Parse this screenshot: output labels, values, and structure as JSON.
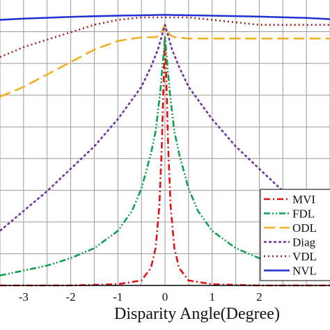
{
  "chart_data": {
    "type": "line",
    "xlabel": "Disparity Angle(Degree)",
    "ylabel": "",
    "title": "",
    "xlim": [
      -3.5,
      3.5
    ],
    "ylim": [
      0,
      1.15
    ],
    "x_ticks": [
      "-3",
      "-2",
      "-1",
      "0",
      "1",
      "2"
    ],
    "grid": true,
    "legend_position": "bottom-right",
    "series": [
      {
        "name": "MVI",
        "legend_label": "MVI",
        "color": "#e01010",
        "dash": "9 4 2 4",
        "points": [
          [
            -3.5,
            0.0
          ],
          [
            -2.0,
            0.0
          ],
          [
            -1.0,
            0.005
          ],
          [
            -0.5,
            0.02
          ],
          [
            -0.3,
            0.07
          ],
          [
            -0.2,
            0.15
          ],
          [
            -0.12,
            0.32
          ],
          [
            -0.07,
            0.55
          ],
          [
            -0.03,
            0.82
          ],
          [
            0.0,
            1.0
          ],
          [
            0.03,
            0.82
          ],
          [
            0.07,
            0.55
          ],
          [
            0.12,
            0.32
          ],
          [
            0.2,
            0.15
          ],
          [
            0.3,
            0.07
          ],
          [
            0.5,
            0.02
          ],
          [
            1.0,
            0.005
          ],
          [
            2.0,
            0.0
          ],
          [
            3.5,
            0.0
          ]
        ]
      },
      {
        "name": "FDL",
        "legend_label": "FDL",
        "color": "#10a050",
        "dash": "9 3 2 3 2 3",
        "points": [
          [
            -3.5,
            0.04
          ],
          [
            -3.0,
            0.06
          ],
          [
            -2.5,
            0.08
          ],
          [
            -2.0,
            0.11
          ],
          [
            -1.5,
            0.15
          ],
          [
            -1.0,
            0.22
          ],
          [
            -0.7,
            0.3
          ],
          [
            -0.5,
            0.39
          ],
          [
            -0.3,
            0.53
          ],
          [
            -0.2,
            0.62
          ],
          [
            -0.1,
            0.78
          ],
          [
            0.0,
            1.0
          ],
          [
            0.1,
            0.78
          ],
          [
            0.2,
            0.62
          ],
          [
            0.3,
            0.53
          ],
          [
            0.5,
            0.39
          ],
          [
            0.7,
            0.3
          ],
          [
            1.0,
            0.22
          ],
          [
            1.5,
            0.15
          ],
          [
            2.0,
            0.11
          ],
          [
            2.5,
            0.08
          ],
          [
            3.0,
            0.06
          ],
          [
            3.5,
            0.04
          ]
        ]
      },
      {
        "name": "ODL",
        "legend_label": "ODL",
        "color": "#f0b020",
        "dash": "16 7",
        "points": [
          [
            -3.5,
            0.76
          ],
          [
            -3.0,
            0.8
          ],
          [
            -2.5,
            0.85
          ],
          [
            -2.0,
            0.9
          ],
          [
            -1.5,
            0.95
          ],
          [
            -1.0,
            0.985
          ],
          [
            -0.5,
            1.0
          ],
          [
            -0.2,
            1.0
          ],
          [
            -0.1,
            1.01
          ],
          [
            0.0,
            1.05
          ],
          [
            0.1,
            1.01
          ],
          [
            0.2,
            1.0
          ],
          [
            0.5,
            0.995
          ],
          [
            1.0,
            0.995
          ],
          [
            2.0,
            0.995
          ],
          [
            3.0,
            0.995
          ],
          [
            3.5,
            0.995
          ]
        ]
      },
      {
        "name": "Diag",
        "legend_label": "Diag",
        "color": "#7030a0",
        "dash": "4 3",
        "points": [
          [
            -3.5,
            0.22
          ],
          [
            -3.0,
            0.3
          ],
          [
            -2.5,
            0.38
          ],
          [
            -2.0,
            0.47
          ],
          [
            -1.5,
            0.56
          ],
          [
            -1.0,
            0.67
          ],
          [
            -0.5,
            0.8
          ],
          [
            -0.3,
            0.88
          ],
          [
            -0.15,
            0.95
          ],
          [
            0.0,
            1.05
          ],
          [
            0.15,
            0.95
          ],
          [
            0.3,
            0.88
          ],
          [
            0.5,
            0.8
          ],
          [
            1.0,
            0.67
          ],
          [
            1.5,
            0.56
          ],
          [
            2.0,
            0.47
          ],
          [
            2.5,
            0.38
          ],
          [
            3.0,
            0.3
          ],
          [
            3.5,
            0.22
          ]
        ]
      },
      {
        "name": "VDL",
        "legend_label": "VDL",
        "color": "#a02020",
        "dash": "2 4",
        "points": [
          [
            -3.5,
            0.92
          ],
          [
            -3.0,
            0.96
          ],
          [
            -2.5,
            0.99
          ],
          [
            -2.0,
            1.02
          ],
          [
            -1.5,
            1.05
          ],
          [
            -1.0,
            1.07
          ],
          [
            -0.5,
            1.08
          ],
          [
            0.0,
            1.08
          ],
          [
            0.5,
            1.08
          ],
          [
            1.0,
            1.07
          ],
          [
            1.5,
            1.06
          ],
          [
            2.0,
            1.05
          ],
          [
            2.5,
            1.05
          ],
          [
            3.0,
            1.05
          ],
          [
            3.5,
            1.05
          ]
        ]
      },
      {
        "name": "NVL",
        "legend_label": "NVL",
        "color": "#2030d0",
        "dash": "",
        "points": [
          [
            -3.5,
            1.07
          ],
          [
            -3.0,
            1.075
          ],
          [
            -2.0,
            1.082
          ],
          [
            -1.0,
            1.087
          ],
          [
            0.0,
            1.09
          ],
          [
            1.0,
            1.087
          ],
          [
            2.0,
            1.083
          ],
          [
            3.0,
            1.078
          ],
          [
            3.5,
            1.073
          ]
        ]
      }
    ]
  }
}
